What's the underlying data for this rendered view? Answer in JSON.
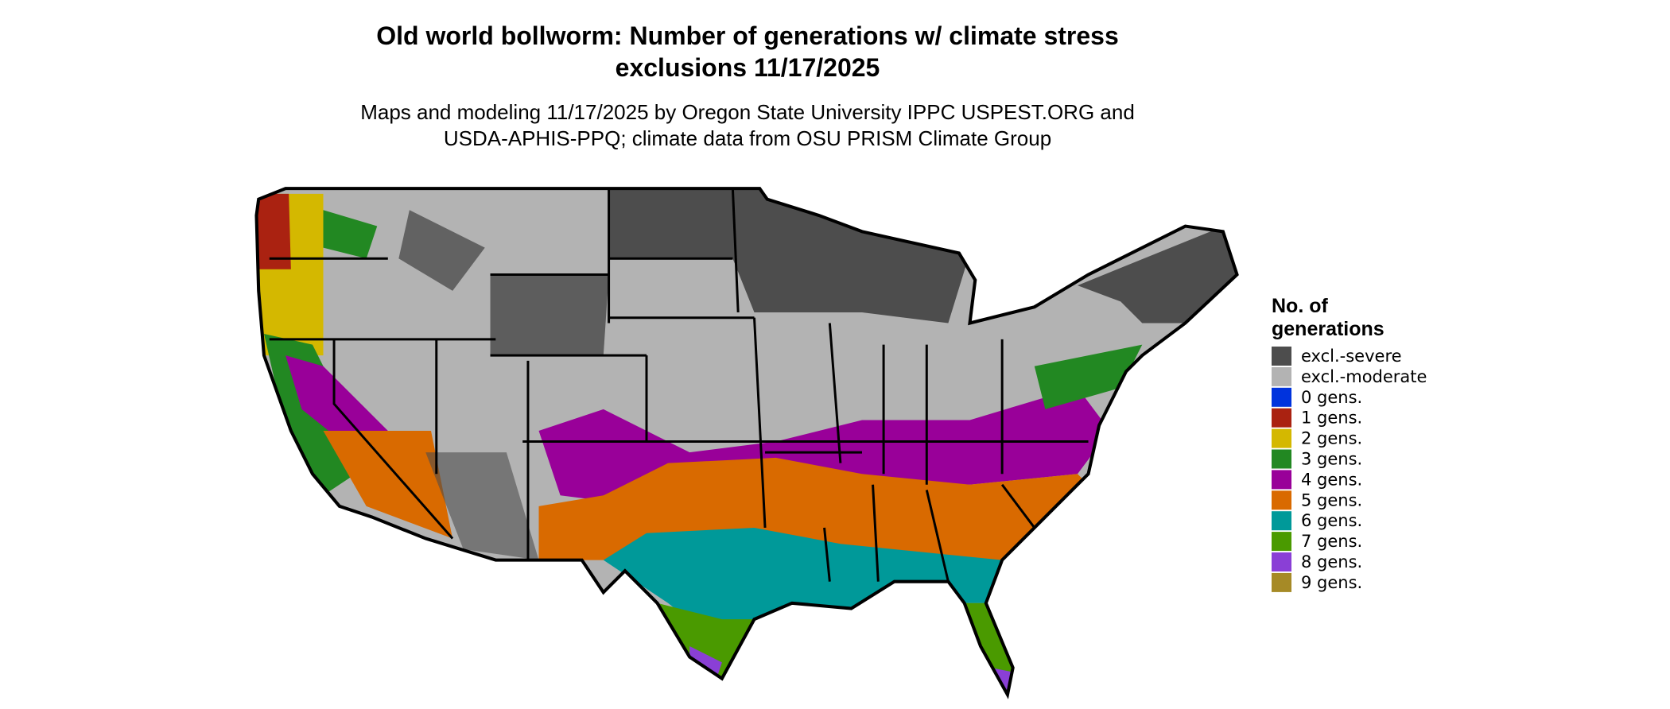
{
  "title": {
    "lines": [
      "Old world bollworm: Number of generations w/ climate stress",
      "exclusions 11/17/2025"
    ]
  },
  "subtitle": {
    "lines": [
      "Maps and modeling 11/17/2025 by Oregon State University IPPC USPEST.ORG and",
      "USDA-APHIS-PPQ; climate data from OSU PRISM Climate Group"
    ]
  },
  "legend": {
    "title_lines": [
      "No. of",
      "generations"
    ],
    "items": [
      {
        "label": "excl.-severe",
        "color": "#4d4d4d"
      },
      {
        "label": "excl.-moderate",
        "color": "#b3b3b3"
      },
      {
        "label": "0 gens.",
        "color": "#0033dd"
      },
      {
        "label": "1 gens.",
        "color": "#aa2211"
      },
      {
        "label": "2 gens.",
        "color": "#d4b800"
      },
      {
        "label": "3 gens.",
        "color": "#228822"
      },
      {
        "label": "4 gens.",
        "color": "#990099"
      },
      {
        "label": "5 gens.",
        "color": "#d96a00"
      },
      {
        "label": "6 gens.",
        "color": "#009999"
      },
      {
        "label": "7 gens.",
        "color": "#4a9a00"
      },
      {
        "label": "8 gens.",
        "color": "#8a3fd6"
      },
      {
        "label": "9 gens.",
        "color": "#a68a26"
      }
    ]
  }
}
